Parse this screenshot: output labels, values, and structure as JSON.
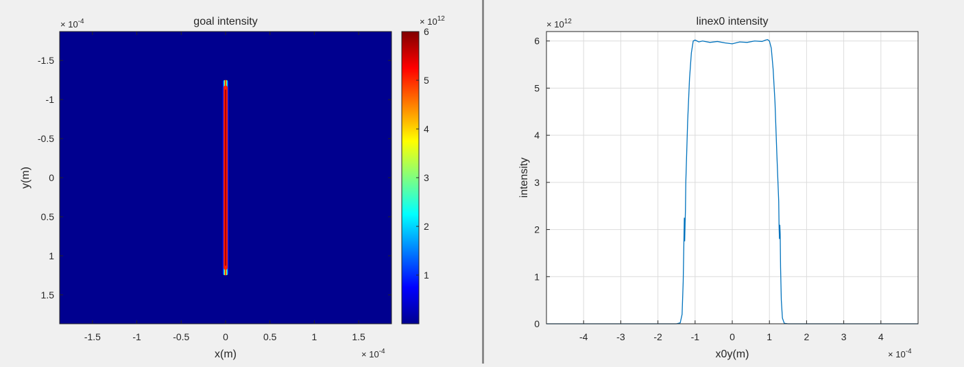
{
  "chart_data": [
    {
      "type": "heatmap",
      "title": "goal intensity",
      "xlabel": "x(m)",
      "ylabel": "y(m)",
      "x_exponent": "10",
      "x_exponent_power": "-4",
      "y_exponent": "10",
      "y_exponent_power": "-4",
      "xlim": [
        -1.87,
        1.87
      ],
      "ylim": [
        -1.87,
        1.87
      ],
      "y_reversed": true,
      "xticks": [
        -1.5,
        -1,
        -0.5,
        0,
        0.5,
        1,
        1.5
      ],
      "xtick_labels": [
        "-1.5",
        "-1",
        "-0.5",
        "0",
        "0.5",
        "1",
        "1.5"
      ],
      "yticks": [
        -1.5,
        -1,
        -0.5,
        0,
        0.5,
        1,
        1.5
      ],
      "ytick_labels": [
        "-1.5",
        "-1",
        "-0.5",
        "0",
        "0.5",
        "1",
        "1.5"
      ],
      "colormap": "jet",
      "background_color": "#00008f",
      "line_feature": {
        "x_center": 0,
        "y_from": -1.25,
        "y_to": 1.25,
        "peak_value": 6
      },
      "colorbar": {
        "min": 0,
        "max": 6,
        "ticks": [
          1,
          2,
          3,
          4,
          5,
          6
        ],
        "tick_labels": [
          "1",
          "2",
          "3",
          "4",
          "5",
          "6"
        ],
        "exponent": "10",
        "exponent_power": "12"
      }
    },
    {
      "type": "line",
      "title": "linex0 intensity",
      "xlabel": "x0y(m)",
      "ylabel": "intensity",
      "x_exponent": "10",
      "x_exponent_power": "-4",
      "y_exponent": "10",
      "y_exponent_power": "12",
      "xlim": [
        -5,
        5
      ],
      "ylim": [
        0,
        6.2
      ],
      "xticks": [
        -4,
        -3,
        -2,
        -1,
        0,
        1,
        2,
        3,
        4
      ],
      "xtick_labels": [
        "-4",
        "-3",
        "-2",
        "-1",
        "0",
        "1",
        "2",
        "3",
        "4"
      ],
      "yticks": [
        0,
        1,
        2,
        3,
        4,
        5,
        6
      ],
      "ytick_labels": [
        "0",
        "1",
        "2",
        "3",
        "4",
        "5",
        "6"
      ],
      "grid": true,
      "line_color": "#0072bd",
      "series": [
        {
          "x": [
            -5,
            -4.5,
            -4,
            -3.5,
            -3,
            -2.5,
            -2,
            -1.5,
            -1.4,
            -1.35,
            -1.32,
            -1.3,
            -1.29,
            -1.28,
            -1.27,
            -1.26,
            -1.25,
            -1.2,
            -1.15,
            -1.1,
            -1.05,
            -1.0,
            -0.95,
            -0.9,
            -0.8,
            -0.6,
            -0.4,
            -0.2,
            0,
            0.2,
            0.4,
            0.6,
            0.8,
            0.9,
            0.95,
            1.0,
            1.05,
            1.1,
            1.15,
            1.2,
            1.25,
            1.26,
            1.27,
            1.28,
            1.29,
            1.3,
            1.32,
            1.35,
            1.4,
            1.5,
            2,
            2.5,
            3,
            3.5,
            4,
            4.5,
            5
          ],
          "y": [
            0,
            0,
            0,
            0,
            0,
            0,
            0,
            0,
            0.02,
            0.2,
            0.9,
            1.8,
            2.25,
            1.75,
            2.1,
            2.4,
            3.0,
            4.3,
            5.2,
            5.75,
            6.0,
            6.02,
            6.0,
            5.98,
            6.0,
            5.97,
            5.99,
            5.96,
            5.94,
            5.98,
            5.97,
            6.0,
            5.99,
            6.02,
            6.03,
            6.0,
            5.85,
            5.4,
            4.7,
            3.6,
            2.6,
            2.05,
            1.8,
            2.1,
            1.9,
            1.2,
            0.5,
            0.12,
            0.01,
            0,
            0,
            0,
            0,
            0,
            0,
            0,
            0
          ]
        }
      ]
    }
  ]
}
